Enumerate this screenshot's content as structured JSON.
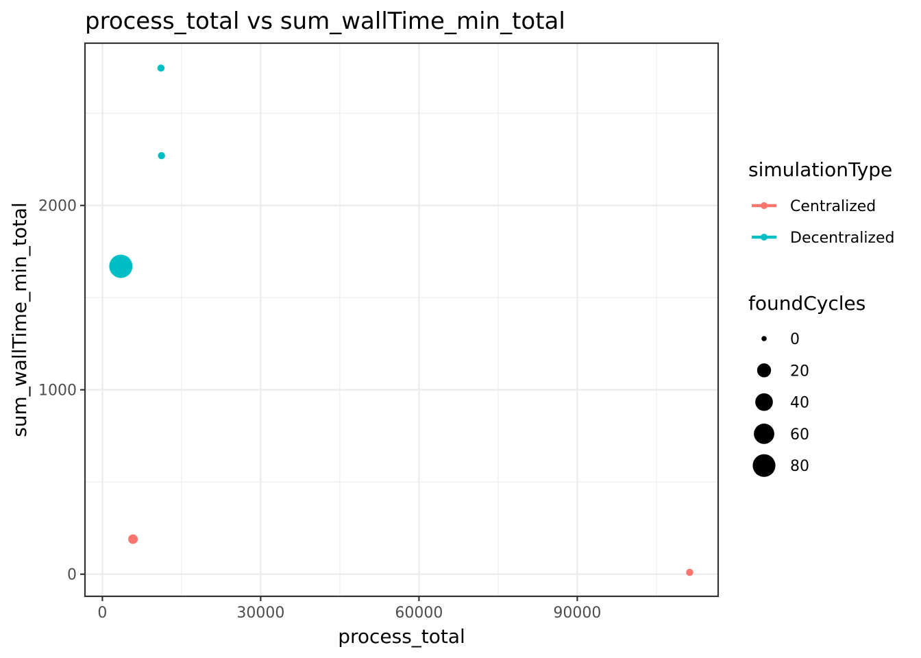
{
  "chart_data": {
    "type": "scatter",
    "title": "process_total  vs  sum_wallTime_min_total",
    "xlabel": "process_total",
    "ylabel": "sum_wallTime_min_total",
    "xlim": [
      -3300,
      116700
    ],
    "ylim": [
      -120,
      2880
    ],
    "x_ticks": [
      0,
      30000,
      60000,
      90000
    ],
    "x_tick_labels": [
      "0",
      "30000",
      "60000",
      "90000"
    ],
    "x_minor_ticks": [
      15000,
      45000,
      75000,
      105000
    ],
    "y_ticks": [
      0,
      1000,
      2000
    ],
    "y_tick_labels": [
      "0",
      "1000",
      "2000"
    ],
    "y_minor_ticks": [
      500,
      1500,
      2500
    ],
    "grid": true,
    "series": [
      {
        "name": "Centralized",
        "color": "#F8766D",
        "points": [
          {
            "x": 5800,
            "y": 190,
            "foundCycles": 5
          },
          {
            "x": 111300,
            "y": 10,
            "foundCycles": 1
          }
        ]
      },
      {
        "name": "Decentralized",
        "color": "#00BFC4",
        "points": [
          {
            "x": 11100,
            "y": 2745,
            "foundCycles": 1
          },
          {
            "x": 11200,
            "y": 2270,
            "foundCycles": 1
          },
          {
            "x": 3500,
            "y": 1670,
            "foundCycles": 85
          }
        ]
      }
    ],
    "size_range": [
      0,
      85
    ],
    "legend": {
      "position": "right",
      "color_title": "simulationType",
      "color_entries": [
        {
          "label": "Centralized",
          "color": "#F8766D"
        },
        {
          "label": "Decentralized",
          "color": "#00BFC4"
        }
      ],
      "size_title": "foundCycles",
      "size_entries": [
        {
          "label": "0",
          "value": 0
        },
        {
          "label": "20",
          "value": 20
        },
        {
          "label": "40",
          "value": 40
        },
        {
          "label": "60",
          "value": 60
        },
        {
          "label": "80",
          "value": 80
        }
      ]
    }
  }
}
